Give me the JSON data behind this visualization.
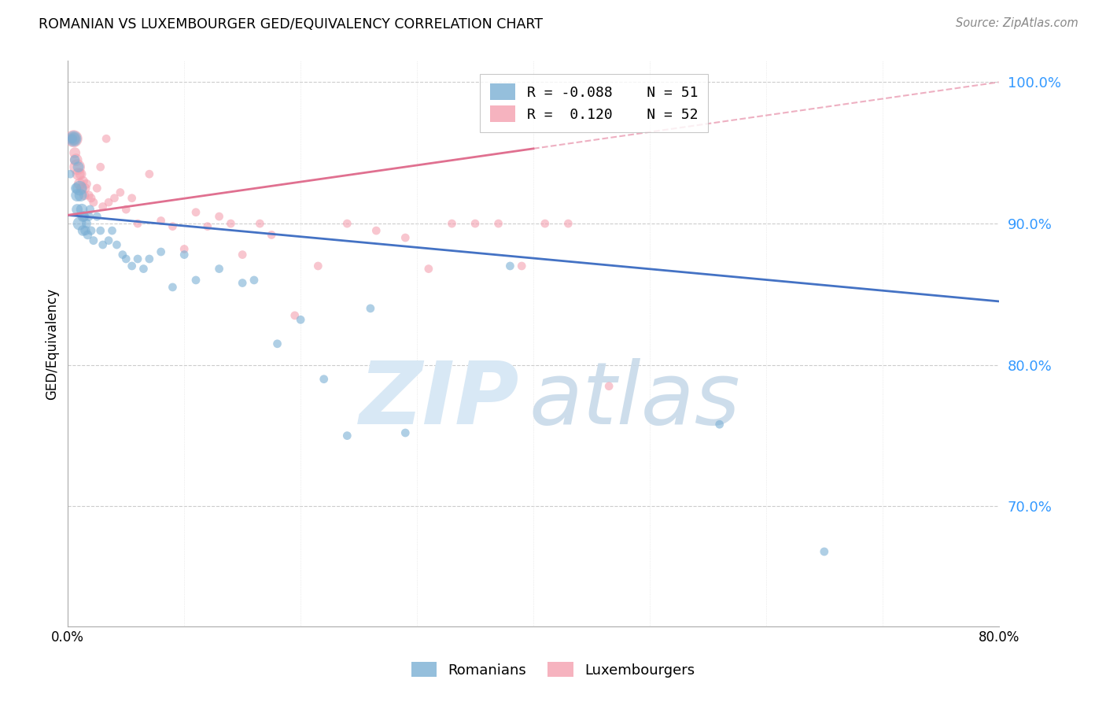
{
  "title": "ROMANIAN VS LUXEMBOURGER GED/EQUIVALENCY CORRELATION CHART",
  "source": "Source: ZipAtlas.com",
  "ylabel": "GED/Equivalency",
  "legend_romanian_R": "-0.088",
  "legend_romanian_N": "51",
  "legend_luxembourger_R": "0.120",
  "legend_luxembourger_N": "52",
  "xlim": [
    0.0,
    0.8
  ],
  "ylim": [
    0.615,
    1.015
  ],
  "yticks": [
    0.7,
    0.8,
    0.9,
    1.0
  ],
  "ytick_labels": [
    "70.0%",
    "80.0%",
    "90.0%",
    "100.0%"
  ],
  "romanian_color": "#7BAFD4",
  "luxembourger_color": "#F4A0B0",
  "romanian_line_color": "#4472C4",
  "luxembourger_line_color": "#E07090",
  "background_color": "#ffffff",
  "rom_line_x0": 0.0,
  "rom_line_y0": 0.906,
  "rom_line_x1": 0.8,
  "rom_line_y1": 0.845,
  "lux_line_solid_x0": 0.0,
  "lux_line_solid_y0": 0.906,
  "lux_line_solid_x1": 0.4,
  "lux_line_solid_y1": 0.953,
  "lux_line_dash_x0": 0.4,
  "lux_line_dash_y0": 0.953,
  "lux_line_dash_x1": 0.8,
  "lux_line_dash_y1": 1.0,
  "romanians_x": [
    0.002,
    0.004,
    0.005,
    0.005,
    0.006,
    0.007,
    0.008,
    0.008,
    0.009,
    0.01,
    0.01,
    0.011,
    0.012,
    0.013,
    0.013,
    0.014,
    0.015,
    0.016,
    0.017,
    0.018,
    0.019,
    0.02,
    0.022,
    0.025,
    0.028,
    0.03,
    0.035,
    0.038,
    0.042,
    0.047,
    0.05,
    0.055,
    0.06,
    0.065,
    0.07,
    0.08,
    0.09,
    0.1,
    0.11,
    0.13,
    0.15,
    0.16,
    0.18,
    0.2,
    0.22,
    0.24,
    0.26,
    0.29,
    0.38,
    0.56,
    0.65
  ],
  "romanians_y": [
    0.935,
    0.96,
    0.96,
    0.96,
    0.945,
    0.925,
    0.92,
    0.91,
    0.94,
    0.925,
    0.9,
    0.92,
    0.91,
    0.905,
    0.895,
    0.905,
    0.895,
    0.9,
    0.892,
    0.905,
    0.91,
    0.895,
    0.888,
    0.905,
    0.895,
    0.885,
    0.888,
    0.895,
    0.885,
    0.878,
    0.875,
    0.87,
    0.875,
    0.868,
    0.875,
    0.88,
    0.855,
    0.878,
    0.86,
    0.868,
    0.858,
    0.86,
    0.815,
    0.832,
    0.79,
    0.75,
    0.84,
    0.752,
    0.87,
    0.758,
    0.668
  ],
  "luxembourgers_x": [
    0.003,
    0.004,
    0.005,
    0.005,
    0.006,
    0.007,
    0.008,
    0.009,
    0.01,
    0.011,
    0.012,
    0.013,
    0.014,
    0.015,
    0.016,
    0.018,
    0.02,
    0.022,
    0.025,
    0.028,
    0.03,
    0.033,
    0.035,
    0.04,
    0.045,
    0.05,
    0.055,
    0.06,
    0.07,
    0.08,
    0.09,
    0.1,
    0.11,
    0.12,
    0.13,
    0.14,
    0.15,
    0.165,
    0.175,
    0.195,
    0.215,
    0.24,
    0.265,
    0.29,
    0.31,
    0.33,
    0.35,
    0.37,
    0.39,
    0.41,
    0.43,
    0.465
  ],
  "luxembourgers_y": [
    0.96,
    0.96,
    0.96,
    0.96,
    0.95,
    0.945,
    0.94,
    0.935,
    0.928,
    0.935,
    0.925,
    0.93,
    0.92,
    0.925,
    0.928,
    0.92,
    0.918,
    0.915,
    0.925,
    0.94,
    0.912,
    0.96,
    0.915,
    0.918,
    0.922,
    0.91,
    0.918,
    0.9,
    0.935,
    0.902,
    0.898,
    0.882,
    0.908,
    0.898,
    0.905,
    0.9,
    0.878,
    0.9,
    0.892,
    0.835,
    0.87,
    0.9,
    0.895,
    0.89,
    0.868,
    0.9,
    0.9,
    0.9,
    0.87,
    0.9,
    0.9,
    0.785
  ],
  "romanian_bubble_sizes": [
    60,
    70,
    130,
    200,
    80,
    90,
    130,
    100,
    100,
    180,
    150,
    130,
    110,
    100,
    95,
    85,
    80,
    75,
    70,
    70,
    65,
    65,
    62,
    62,
    60,
    60,
    60,
    60,
    60,
    60,
    60,
    60,
    60,
    60,
    60,
    60,
    60,
    60,
    60,
    60,
    60,
    60,
    60,
    60,
    60,
    60,
    60,
    60,
    60,
    60,
    60
  ],
  "luxembourger_bubble_sizes": [
    70,
    90,
    150,
    250,
    100,
    130,
    200,
    130,
    110,
    100,
    95,
    85,
    80,
    75,
    72,
    68,
    65,
    63,
    62,
    60,
    60,
    60,
    60,
    60,
    60,
    60,
    60,
    60,
    60,
    60,
    60,
    60,
    60,
    60,
    60,
    60,
    60,
    60,
    60,
    60,
    60,
    60,
    60,
    60,
    60,
    60,
    60,
    60,
    60,
    60,
    60,
    60
  ]
}
